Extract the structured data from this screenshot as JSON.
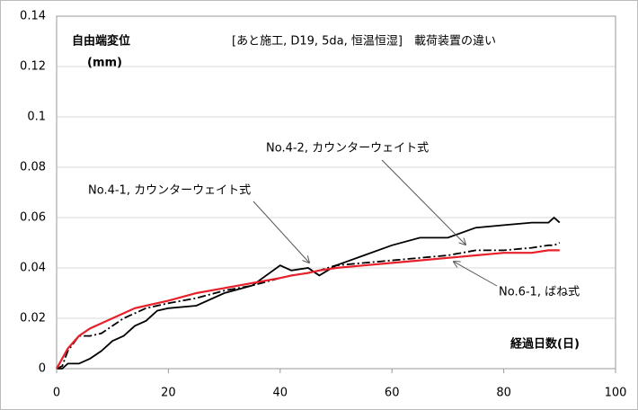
{
  "chart_data": {
    "type": "line",
    "title": "[あと施工, D19, 5da, 恒温恒湿]　載荷装置の違い",
    "y_label": "自由端変位",
    "y_unit": "(mm)",
    "x_label": "経過日数(日)",
    "x": [
      0,
      1,
      2,
      4,
      6,
      8,
      10,
      12,
      14,
      16,
      18,
      20,
      25,
      30,
      35,
      40,
      42,
      45,
      47,
      50,
      55,
      60,
      65,
      70,
      75,
      80,
      85,
      88,
      89,
      90
    ],
    "series": [
      {
        "name": "No.4-1, カウンターウェイト式",
        "color": "#000000",
        "style": "solid",
        "values": [
          0,
          0,
          0.002,
          0.002,
          0.004,
          0.007,
          0.011,
          0.013,
          0.017,
          0.019,
          0.023,
          0.024,
          0.025,
          0.03,
          0.033,
          0.041,
          0.039,
          0.04,
          0.037,
          0.041,
          0.045,
          0.049,
          0.052,
          0.052,
          0.056,
          0.057,
          0.058,
          0.058,
          0.06,
          0.058
        ]
      },
      {
        "name": "No.4-2, カウンターウェイト式",
        "color": "#000000",
        "style": "dashdot",
        "values": [
          0,
          0.001,
          0.007,
          0.013,
          0.013,
          0.014,
          0.017,
          0.02,
          0.022,
          0.024,
          0.025,
          0.026,
          0.028,
          0.031,
          0.033,
          0.036,
          0.037,
          0.038,
          0.039,
          0.041,
          0.042,
          0.043,
          0.044,
          0.045,
          0.047,
          0.047,
          0.048,
          0.049,
          0.049,
          0.05
        ]
      },
      {
        "name": "No.6-1, ばね式",
        "color": "#e8202a",
        "style": "solid",
        "values": [
          0,
          0.004,
          0.008,
          0.013,
          0.016,
          0.018,
          0.02,
          0.022,
          0.024,
          0.025,
          0.026,
          0.027,
          0.03,
          0.032,
          0.034,
          0.036,
          0.037,
          0.038,
          0.039,
          0.04,
          0.041,
          0.042,
          0.043,
          0.044,
          0.045,
          0.046,
          0.046,
          0.047,
          0.047,
          0.047
        ]
      }
    ],
    "xlim": [
      0,
      100
    ],
    "xticks": [
      0,
      20,
      40,
      60,
      80,
      100
    ],
    "ylim": [
      0,
      0.14
    ],
    "yticks": [
      0,
      0.02,
      0.04,
      0.06,
      0.08,
      0.1,
      0.12,
      0.14
    ],
    "grid": true
  }
}
